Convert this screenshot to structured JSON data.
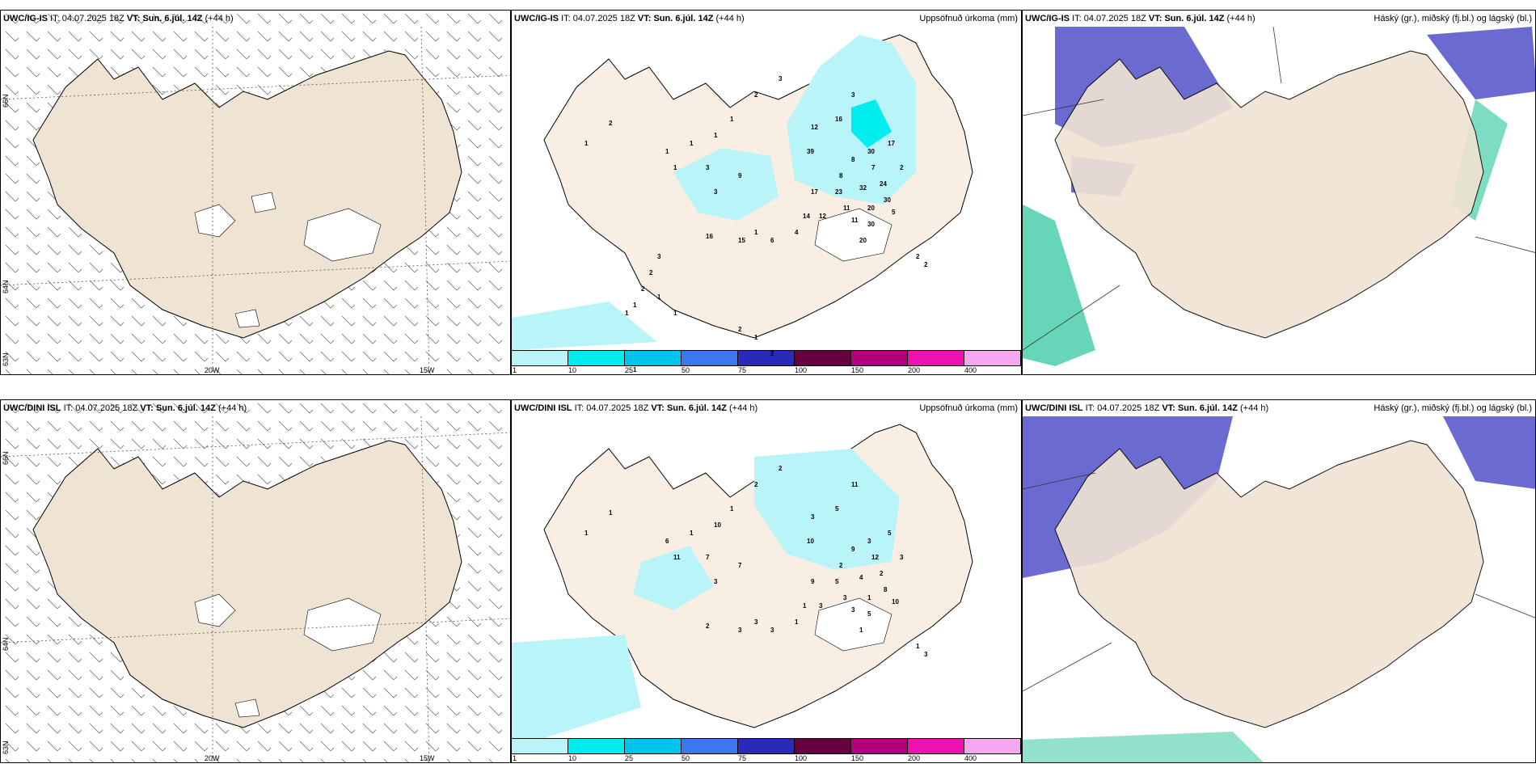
{
  "rows": [
    {
      "model": "UWC/IG-IS",
      "it_label": "IT:",
      "it_value": "04.07.2025 18Z",
      "vt_label": "VT:",
      "vt_value": "Sun. 6.júl. 14Z",
      "lead": "(+44 h)"
    },
    {
      "model": "UWC/DINI ISL",
      "it_label": "IT:",
      "it_value": "04.07.2025 18Z",
      "vt_label": "VT:",
      "vt_value": "Sun. 6.júl. 14Z",
      "lead": "(+44 h)"
    }
  ],
  "precip_title": "Uppsöfnuð úrkoma (mm)",
  "cloud_title": "Háský (gr.), miðský (fj.bl.) og lágský (bl.)",
  "gridlabels": {
    "lat66": "66N",
    "lat64": "64N",
    "lat63": "63N",
    "lon20": "20W",
    "lon15": "15W"
  },
  "colorbar": {
    "colors": [
      "#b8f4f8",
      "#00eef0",
      "#00c4ee",
      "#3a78f0",
      "#2a2ab8",
      "#680040",
      "#b00080",
      "#ee10b0",
      "#f4a8ee"
    ],
    "ticks": [
      "1",
      "10",
      "25",
      "50",
      "75",
      "100",
      "150",
      "200",
      "400"
    ]
  },
  "colors": {
    "land": "#efe3d3",
    "land_light": "#f9eee4",
    "ice": "#ffffff",
    "precip_light": "#b8f4f8",
    "precip_mid": "#00eef0",
    "high_cloud": "#6a6ad0",
    "mid_cloud": "#26c49a",
    "low_cloud": "#3b6ef0"
  },
  "precip_values_top": [
    "3",
    "2",
    "1",
    "2",
    "1",
    "1",
    "1",
    "1",
    "12",
    "16",
    "3",
    "39",
    "8",
    "30",
    "17",
    "1",
    "3",
    "9",
    "3",
    "7",
    "24",
    "2",
    "17",
    "23",
    "30",
    "20",
    "32",
    "8",
    "14",
    "12",
    "11",
    "11",
    "30",
    "5",
    "4",
    "1",
    "20",
    "2",
    "2",
    "6",
    "16",
    "15",
    "3",
    "2",
    "2",
    "1",
    "1",
    "1",
    "1",
    "2",
    "1",
    "2",
    "1"
  ],
  "precip_values_bottom": [
    "2",
    "1",
    "1",
    "2",
    "1",
    "10",
    "1",
    "6",
    "3",
    "5",
    "11",
    "10",
    "9",
    "3",
    "5",
    "11",
    "7",
    "7",
    "3",
    "12",
    "2",
    "3",
    "9",
    "5",
    "8",
    "1",
    "4",
    "2",
    "1",
    "3",
    "3",
    "3",
    "5",
    "10",
    "1",
    "3",
    "1",
    "1",
    "3",
    "3",
    "2",
    "3"
  ]
}
